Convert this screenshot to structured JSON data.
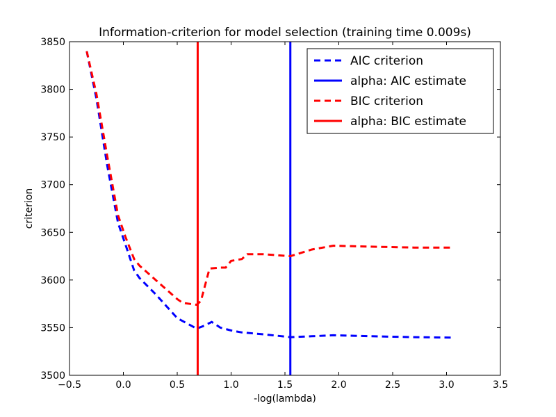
{
  "chart_data": {
    "type": "line",
    "title": "Information-criterion for model selection (training time 0.009s)",
    "xlabel": "-log(lambda)",
    "ylabel": "criterion",
    "xlim": [
      -0.5,
      3.5
    ],
    "ylim": [
      3500,
      3850
    ],
    "xticks": [
      -0.5,
      0.0,
      0.5,
      1.0,
      1.5,
      2.0,
      2.5,
      3.0,
      3.5
    ],
    "xtick_labels": [
      "−0.5",
      "0.0",
      "0.5",
      "1.0",
      "1.5",
      "2.0",
      "2.5",
      "3.0",
      "3.5"
    ],
    "yticks": [
      3500,
      3550,
      3600,
      3650,
      3700,
      3750,
      3800,
      3850
    ],
    "ytick_labels": [
      "3500",
      "3550",
      "3600",
      "3650",
      "3700",
      "3750",
      "3800",
      "3850"
    ],
    "grid": false,
    "legend_position": "top-right",
    "series": [
      {
        "name": "AIC criterion",
        "style": "dashed",
        "color": "#0000ff",
        "x": [
          -0.34,
          -0.25,
          -0.15,
          -0.05,
          0.02,
          0.1,
          0.15,
          0.3,
          0.5,
          0.68,
          0.75,
          0.82,
          0.9,
          1.0,
          1.1,
          1.3,
          1.55,
          1.75,
          1.95,
          2.3,
          2.7,
          3.05
        ],
        "values": [
          3840,
          3790,
          3720,
          3660,
          3637,
          3610,
          3602,
          3585,
          3560,
          3549,
          3552,
          3556,
          3550,
          3547,
          3545,
          3543,
          3540,
          3541,
          3542,
          3541,
          3540,
          3539.5
        ]
      },
      {
        "name": "alpha: AIC estimate",
        "style": "solid",
        "color": "#0000ff",
        "x_vline": 1.55
      },
      {
        "name": "BIC criterion",
        "style": "dashed",
        "color": "#ff0000",
        "x": [
          -0.34,
          -0.25,
          -0.15,
          -0.05,
          0.02,
          0.1,
          0.15,
          0.3,
          0.5,
          0.55,
          0.68,
          0.72,
          0.8,
          0.9,
          0.95,
          1.0,
          1.1,
          1.15,
          1.3,
          1.55,
          1.75,
          1.95,
          2.3,
          2.7,
          3.05
        ],
        "values": [
          3840,
          3795,
          3730,
          3668,
          3645,
          3622,
          3615,
          3600,
          3580,
          3576,
          3574,
          3578,
          3612,
          3613,
          3613,
          3620,
          3622,
          3627,
          3627,
          3625,
          3632,
          3636,
          3635,
          3634,
          3634
        ]
      },
      {
        "name": "alpha: BIC estimate",
        "style": "solid",
        "color": "#ff0000",
        "x_vline": 0.69
      }
    ]
  }
}
